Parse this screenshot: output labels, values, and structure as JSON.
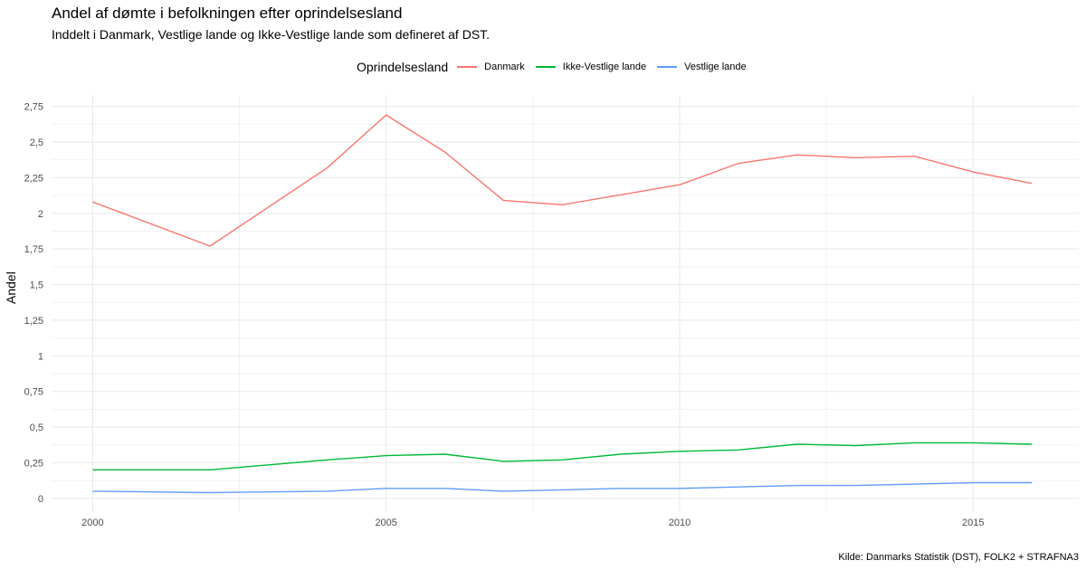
{
  "chart_data": {
    "type": "line",
    "title": "Andel af dømte i befolkningen efter oprindelsesland",
    "subtitle": "Inddelt i Danmark, Vestlige lande og Ikke-Vestlige lande som defineret af DST.",
    "caption": "Kilde: Danmarks Statistik (DST), FOLK2 + STRAFNA3",
    "xlabel": "",
    "ylabel": "Andel",
    "legend_title": "Oprindelsesland",
    "legend_position": "top",
    "xlim": [
      1999.3,
      2016.8
    ],
    "ylim": [
      -0.09,
      2.83
    ],
    "x_ticks": [
      2000,
      2005,
      2010,
      2015
    ],
    "x_tick_labels": [
      "2000",
      "2005",
      "2010",
      "2015"
    ],
    "y_ticks": [
      0,
      0.25,
      0.5,
      0.75,
      1,
      1.25,
      1.5,
      1.75,
      2,
      2.25,
      2.5,
      2.75
    ],
    "y_tick_labels": [
      "0",
      "0,25",
      "0,5",
      "0,75",
      "1",
      "1,25",
      "1,5",
      "1,75",
      "2",
      "2,25",
      "2,5",
      "2,75"
    ],
    "grid": true,
    "x": [
      2000,
      2002,
      2004,
      2005,
      2006,
      2007,
      2008,
      2009,
      2010,
      2011,
      2012,
      2013,
      2014,
      2015,
      2016
    ],
    "series": [
      {
        "name": "Danmark",
        "color": "#F8766D",
        "values": [
          2.08,
          1.77,
          2.32,
          2.69,
          2.43,
          2.09,
          2.06,
          2.13,
          2.2,
          2.35,
          2.41,
          2.39,
          2.4,
          2.29,
          2.21
        ]
      },
      {
        "name": "Ikke-Vestlige lande",
        "color": "#00BA38",
        "values": [
          0.2,
          0.2,
          0.27,
          0.3,
          0.31,
          0.26,
          0.27,
          0.31,
          0.33,
          0.34,
          0.38,
          0.37,
          0.39,
          0.39,
          0.38
        ]
      },
      {
        "name": "Vestlige lande",
        "color": "#619CFF",
        "values": [
          0.05,
          0.04,
          0.05,
          0.07,
          0.07,
          0.05,
          0.06,
          0.07,
          0.07,
          0.08,
          0.09,
          0.09,
          0.1,
          0.11,
          0.11
        ]
      }
    ]
  }
}
